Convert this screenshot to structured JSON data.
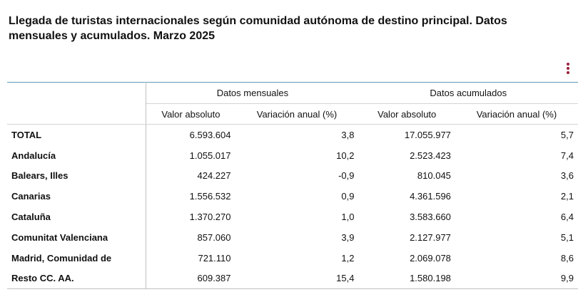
{
  "title": "Llegada de turistas internacionales según comunidad autónoma de destino principal. Datos mensuales y acumulados. Marzo 2025",
  "menu_icon": "vertical-dots-icon",
  "accent_color": "#9c1f3a",
  "table": {
    "group_headers": [
      "Datos mensuales",
      "Datos acumulados"
    ],
    "sub_headers": [
      "Valor absoluto",
      "Variación anual (%)",
      "Valor absoluto",
      "Variación anual (%)"
    ],
    "rows": [
      {
        "label": "TOTAL",
        "values": [
          "6.593.604",
          "3,8",
          "17.055.977",
          "5,7"
        ]
      },
      {
        "label": "Andalucía",
        "values": [
          "1.055.017",
          "10,2",
          "2.523.423",
          "7,4"
        ]
      },
      {
        "label": "Balears, Illes",
        "values": [
          "424.227",
          "-0,9",
          "810.045",
          "3,6"
        ]
      },
      {
        "label": "Canarias",
        "values": [
          "1.556.532",
          "0,9",
          "4.361.596",
          "2,1"
        ]
      },
      {
        "label": "Cataluña",
        "values": [
          "1.370.270",
          "1,0",
          "3.583.660",
          "6,4"
        ]
      },
      {
        "label": "Comunitat Valenciana",
        "values": [
          "857.060",
          "3,9",
          "2.127.977",
          "5,1"
        ]
      },
      {
        "label": "Madrid, Comunidad de",
        "values": [
          "721.110",
          "1,2",
          "2.069.078",
          "8,6"
        ]
      },
      {
        "label": "Resto CC. AA.",
        "values": [
          "609.387",
          "15,4",
          "1.580.198",
          "9,9"
        ]
      }
    ]
  }
}
